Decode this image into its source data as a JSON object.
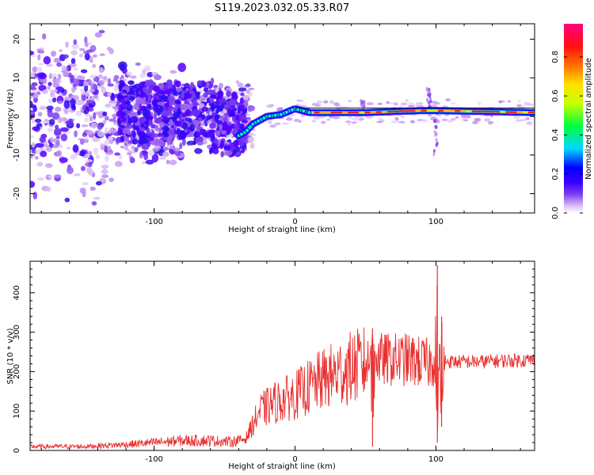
{
  "figure_title": "S119.2023.032.05.33.R07",
  "chart_data": [
    {
      "type": "heatmap",
      "xlabel": "Height of straight line (km)",
      "ylabel": "Frequency (Hz)",
      "xlim": [
        -188,
        170
      ],
      "ylim": [
        -25,
        24
      ],
      "x_ticks": [
        -100,
        0,
        100
      ],
      "y_ticks": [
        -20,
        -10,
        0,
        10,
        20
      ],
      "colorbar": {
        "label": "Normalized spectral amplitude",
        "range": [
          0,
          0.97
        ],
        "ticks": [
          0.0,
          0.2,
          0.4,
          0.6,
          0.8
        ],
        "colormap": [
          "#ffffff",
          "#d9b8f5",
          "#7a3ef0",
          "#3a00ff",
          "#0000ff",
          "#00d8ff",
          "#00ff40",
          "#c8ff00",
          "#ffe000",
          "#ff7000",
          "#ff1010",
          "#ff0080"
        ]
      },
      "frequency_trace": [
        {
          "x": -40,
          "f": -5
        },
        {
          "x": -35,
          "f": -4
        },
        {
          "x": -30,
          "f": -2
        },
        {
          "x": -25,
          "f": -1
        },
        {
          "x": -20,
          "f": 0
        },
        {
          "x": -10,
          "f": 0.5
        },
        {
          "x": 0,
          "f": 2
        },
        {
          "x": 10,
          "f": 1
        },
        {
          "x": 50,
          "f": 1
        },
        {
          "x": 90,
          "f": 1.5
        },
        {
          "x": 100,
          "f": 1.5
        },
        {
          "x": 170,
          "f": 1
        }
      ],
      "peak_amplitude_region_x": [
        0,
        170
      ]
    },
    {
      "type": "line",
      "xlabel": "Height of straight line (km)",
      "ylabel": "SNR (10 * v/v)",
      "xlim": [
        -188,
        170
      ],
      "ylim": [
        0,
        480
      ],
      "x_ticks": [
        -100,
        0,
        100
      ],
      "y_ticks": [
        0,
        100,
        200,
        300,
        400
      ],
      "color": "#e8302f",
      "series": [
        {
          "x": [
            -188,
            -150,
            -120,
            -100,
            -80,
            -60,
            -45,
            -35,
            -25,
            -15,
            0,
            20,
            40,
            50,
            55,
            58,
            60,
            80,
            95,
            100,
            103,
            105,
            110,
            130,
            150,
            170
          ],
          "values": [
            10,
            10,
            15,
            20,
            25,
            25,
            22,
            30,
            100,
            120,
            140,
            180,
            210,
            220,
            230,
            10,
            230,
            230,
            220,
            230,
            470,
            230,
            225,
            225,
            228,
            230
          ]
        }
      ],
      "spikes": [
        {
          "x": 55,
          "low": 10,
          "high": 310
        },
        {
          "x": 101,
          "low": 20,
          "high": 470
        },
        {
          "x": 104,
          "low": 60,
          "high": 340
        }
      ]
    }
  ]
}
